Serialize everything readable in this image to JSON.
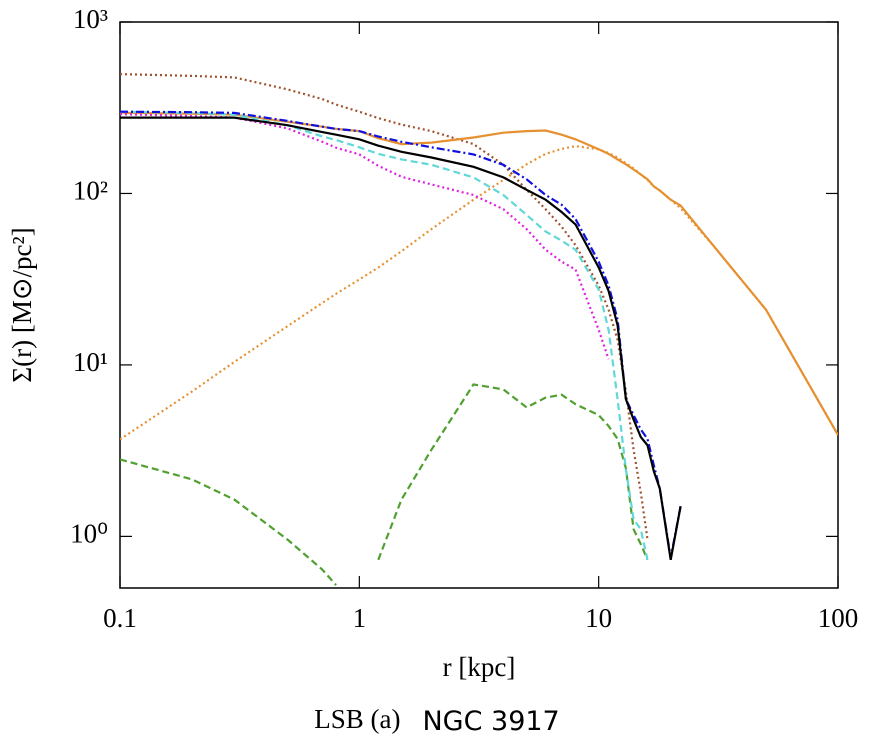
{
  "chart_data": {
    "type": "line",
    "y_label": "Σ(r) [M⊙/pc²]",
    "x_label": "r [kpc]",
    "caption": "LSB (a)",
    "title": "NGC 3917",
    "xscale": "log",
    "yscale": "log",
    "xlim": [
      0.1,
      100
    ],
    "ylim": [
      0.5,
      1000
    ],
    "xticks": [
      0.1,
      1,
      10,
      100
    ],
    "yticks": [
      {
        "value": 1,
        "label": "10⁰"
      },
      {
        "value": 10,
        "label": "10¹"
      },
      {
        "value": 100,
        "label": "10²"
      },
      {
        "value": 1000,
        "label": "10³"
      }
    ],
    "x": [
      0.1,
      0.2,
      0.3,
      0.5,
      0.7,
      0.8,
      1,
      1.2,
      1.5,
      2,
      3,
      4,
      5,
      6,
      7,
      8,
      10,
      11,
      12,
      13,
      14,
      15,
      16,
      17,
      18,
      20,
      22,
      30,
      50,
      100
    ],
    "series": [
      {
        "color": "#a0522d",
        "style": "dotted",
        "values": [
          497,
          485,
          475,
          405,
          355,
          330,
          300,
          275,
          252,
          231,
          194,
          147,
          105,
          81,
          64,
          50,
          29,
          21,
          14,
          7,
          3.2,
          1.8,
          0.96,
          null,
          null,
          null,
          null,
          null,
          null,
          null
        ]
      },
      {
        "color": "#e69030",
        "style": "dotted",
        "values": [
          3.68,
          7,
          10.4,
          16.8,
          23,
          26,
          31.5,
          37,
          46,
          62,
          92,
          120,
          148,
          170,
          182,
          189,
          181,
          172,
          162,
          150,
          140,
          129,
          120,
          110,
          104,
          92,
          82,
          50,
          21,
          3.9
        ]
      },
      {
        "color": "#e69030",
        "style": "solid",
        "values": [
          296,
          292,
          288,
          262,
          245,
          238,
          231,
          210,
          194,
          198,
          212,
          226,
          231,
          233,
          220,
          207,
          181,
          170,
          158,
          148,
          138,
          129,
          121,
          110,
          104,
          92,
          85,
          50,
          21,
          3.9
        ]
      },
      {
        "color": "#50a030",
        "style": "dashed",
        "values": [
          2.81,
          2.15,
          1.64,
          0.96,
          0.64,
          0.52,
          null,
          0.73,
          1.64,
          3.2,
          7.7,
          7.2,
          5.65,
          6.45,
          6.7,
          5.9,
          5.1,
          4.4,
          3.7,
          2.5,
          1.1,
          0.9,
          0.73,
          null,
          null,
          null,
          null,
          null,
          null,
          null
        ]
      },
      {
        "color": "#e020e0",
        "style": "dotted",
        "values": [
          290,
          283,
          277,
          240,
          200,
          185,
          169,
          145,
          125,
          113,
          98,
          81,
          62,
          47,
          40,
          36,
          16,
          10.8,
          null,
          null,
          null,
          null,
          null,
          null,
          null,
          null,
          null,
          null,
          null,
          null
        ]
      },
      {
        "color": "#60d8d8",
        "style": "dashed",
        "values": [
          300,
          295,
          288,
          250,
          215,
          205,
          186,
          170,
          158,
          147,
          124,
          98,
          75,
          60,
          53,
          47,
          27.5,
          16,
          6.3,
          2.46,
          1.26,
          1.1,
          0.73,
          null,
          null,
          null,
          null,
          null,
          null,
          null
        ]
      },
      {
        "color": "#1010e0",
        "style": "dashdot",
        "values": [
          300,
          298,
          295,
          265,
          245,
          238,
          231,
          215,
          200,
          186,
          169,
          147,
          121,
          98,
          86,
          71,
          40,
          29,
          18.4,
          6.3,
          5.1,
          4.2,
          3.7,
          2.6,
          1.9,
          0.75,
          1.5,
          null,
          null,
          null
        ]
      },
      {
        "color": "#000000",
        "style": "solid",
        "values": [
          277,
          277,
          277,
          250,
          228,
          220,
          207,
          190,
          175,
          162,
          143,
          124,
          105,
          92,
          78,
          66,
          37,
          27,
          17,
          6.3,
          4.8,
          3.8,
          3.4,
          2.4,
          1.9,
          0.73,
          1.5,
          null,
          null,
          null
        ]
      }
    ]
  }
}
